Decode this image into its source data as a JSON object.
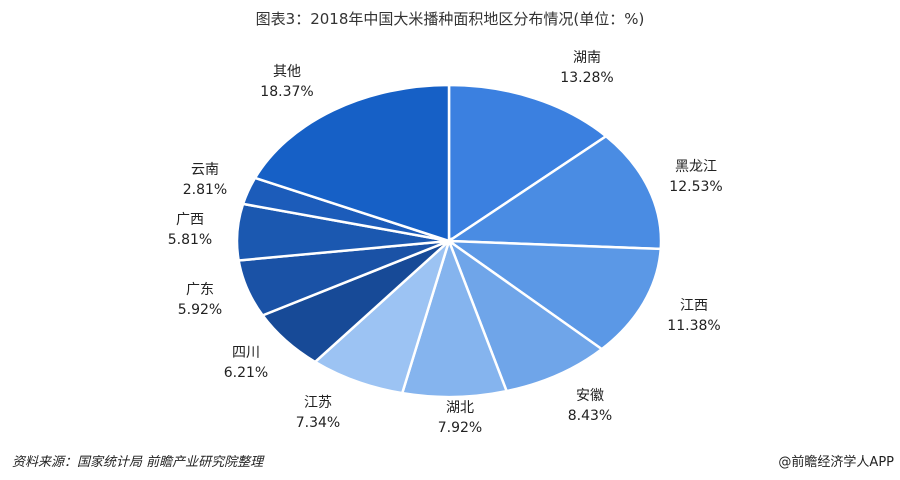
{
  "chart_data": {
    "type": "pie",
    "title": "图表3：2018年中国大米播种面积地区分布情况(单位：%)",
    "start": "top",
    "direction": "clockwise",
    "slices": [
      {
        "label": "湖南",
        "value": 13.28,
        "value_label": "13.28%",
        "color": "#3b80e0"
      },
      {
        "label": "黑龙江",
        "value": 12.53,
        "value_label": "12.53%",
        "color": "#4a8ce3"
      },
      {
        "label": "江西",
        "value": 11.38,
        "value_label": "11.38%",
        "color": "#5b98e6"
      },
      {
        "label": "安徽",
        "value": 8.43,
        "value_label": "8.43%",
        "color": "#6fa5e9"
      },
      {
        "label": "湖北",
        "value": 7.92,
        "value_label": "7.92%",
        "color": "#85b4ee"
      },
      {
        "label": "江苏",
        "value": 7.34,
        "value_label": "7.34%",
        "color": "#9cc3f3"
      },
      {
        "label": "四川",
        "value": 6.21,
        "value_label": "6.21%",
        "color": "#174a97"
      },
      {
        "label": "广东",
        "value": 5.92,
        "value_label": "5.92%",
        "color": "#1a52a6"
      },
      {
        "label": "广西",
        "value": 5.81,
        "value_label": "5.81%",
        "color": "#1b58b0"
      },
      {
        "label": "云南",
        "value": 2.81,
        "value_label": "2.81%",
        "color": "#1c5cba"
      },
      {
        "label": "其他",
        "value": 18.37,
        "value_label": "18.37%",
        "color": "#1660c6"
      }
    ]
  },
  "footer": {
    "source": "资料来源：国家统计局 前瞻产业研究院整理",
    "credit": "@前瞻经济学人APP"
  }
}
